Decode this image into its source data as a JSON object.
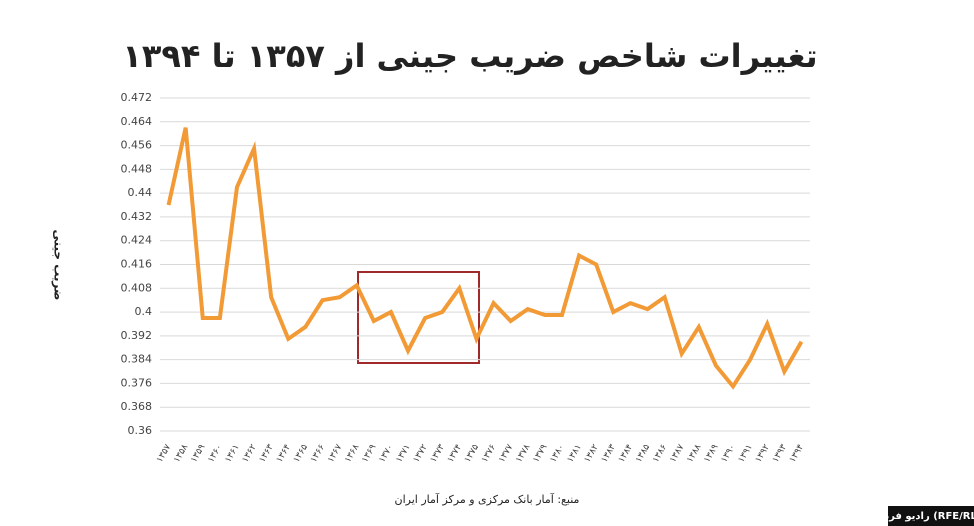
{
  "chart_data": {
    "type": "line",
    "title": "تغییرات شاخص ضریب جینی از ۱۳۵۷ تا ۱۳۹۴",
    "y_label": "ضریب جینی",
    "source": "منبع: آمار بانک مرکزی و مرکز آمار ایران",
    "badge": "رادیو فردا (RFE/RL)",
    "categories": [
      "۱۳۵۷",
      "۱۳۵۸",
      "۱۳۵۹",
      "۱۳۶۰",
      "۱۳۶۱",
      "۱۳۶۲",
      "۱۳۶۳",
      "۱۳۶۴",
      "۱۳۶۵",
      "۱۳۶۶",
      "۱۳۶۷",
      "۱۳۶۸",
      "۱۳۶۹",
      "۱۳۷۰",
      "۱۳۷۱",
      "۱۳۷۲",
      "۱۳۷۳",
      "۱۳۷۴",
      "۱۳۷۵",
      "۱۳۷۶",
      "۱۳۷۷",
      "۱۳۷۸",
      "۱۳۷۹",
      "۱۳۸۰",
      "۱۳۸۱",
      "۱۳۸۲",
      "۱۳۸۳",
      "۱۳۸۴",
      "۱۳۸۵",
      "۱۳۸۶",
      "۱۳۸۷",
      "۱۳۸۸",
      "۱۳۸۹",
      "۱۳۹۰",
      "۱۳۹۱",
      "۱۳۹۲",
      "۱۳۹۳",
      "۱۳۹۴"
    ],
    "values": [
      0.436,
      0.462,
      0.398,
      0.398,
      0.442,
      0.455,
      0.405,
      0.391,
      0.395,
      0.404,
      0.405,
      0.409,
      0.397,
      0.4,
      0.387,
      0.398,
      0.4,
      0.408,
      0.391,
      0.403,
      0.397,
      0.401,
      0.399,
      0.399,
      0.419,
      0.416,
      0.4,
      0.403,
      0.401,
      0.405,
      0.386,
      0.395,
      0.382,
      0.375,
      0.384,
      0.396,
      0.38,
      0.39
    ],
    "color": "#f29a35",
    "ylim": [
      0.36,
      0.472
    ],
    "yticks": [
      0.36,
      0.368,
      0.376,
      0.384,
      0.392,
      0.4,
      0.408,
      0.416,
      0.424,
      0.432,
      0.44,
      0.448,
      0.456,
      0.464,
      0.472
    ],
    "grid": true
  }
}
